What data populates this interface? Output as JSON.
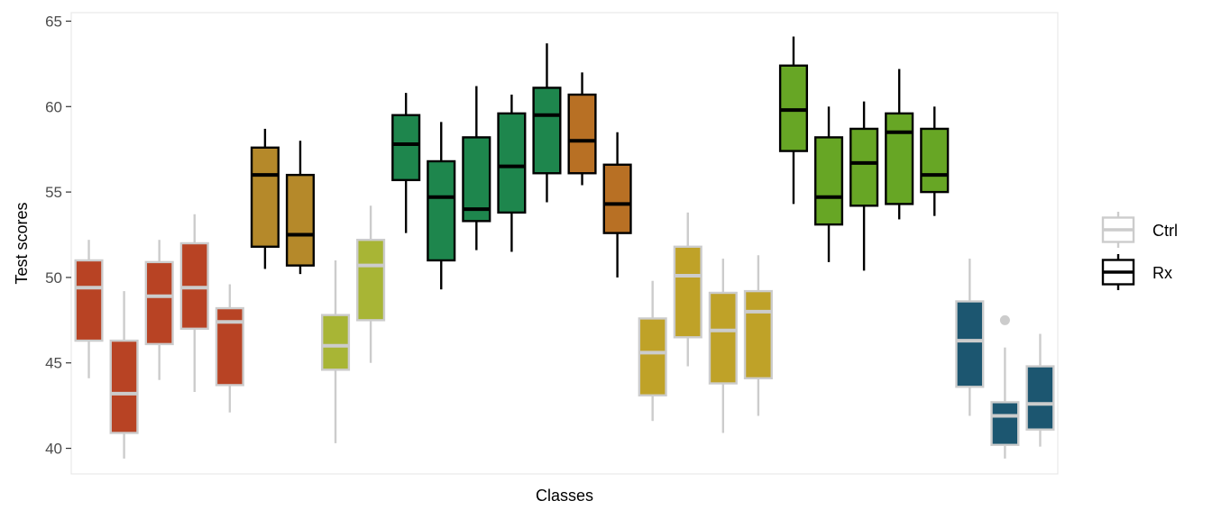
{
  "chart_data": {
    "type": "boxplot",
    "title": "",
    "xlabel": "Classes",
    "ylabel": "Test scores",
    "ylim": [
      38.5,
      65.5
    ],
    "yticks": [
      40,
      45,
      50,
      55,
      60,
      65
    ],
    "grid": false,
    "legend_position": "right",
    "legend": [
      {
        "name": "Ctrl",
        "line_color": "#cccccc"
      },
      {
        "name": "Rx",
        "line_color": "#000000"
      }
    ],
    "boxes": [
      {
        "group": "Ctrl",
        "fill": "#b84324",
        "lower_whisker": 44.1,
        "q1": 46.3,
        "median": 49.4,
        "q3": 51.0,
        "upper_whisker": 52.2,
        "outliers": []
      },
      {
        "group": "Ctrl",
        "fill": "#b84324",
        "lower_whisker": 39.4,
        "q1": 40.9,
        "median": 43.2,
        "q3": 46.3,
        "upper_whisker": 49.2,
        "outliers": []
      },
      {
        "group": "Ctrl",
        "fill": "#b84324",
        "lower_whisker": 44.0,
        "q1": 46.1,
        "median": 48.9,
        "q3": 50.9,
        "upper_whisker": 52.2,
        "outliers": []
      },
      {
        "group": "Ctrl",
        "fill": "#b84324",
        "lower_whisker": 43.3,
        "q1": 47.0,
        "median": 49.4,
        "q3": 52.0,
        "upper_whisker": 53.7,
        "outliers": []
      },
      {
        "group": "Ctrl",
        "fill": "#b84324",
        "lower_whisker": 42.1,
        "q1": 43.7,
        "median": 47.4,
        "q3": 48.2,
        "upper_whisker": 49.6,
        "outliers": []
      },
      {
        "group": "Rx",
        "fill": "#b5892a",
        "lower_whisker": 50.5,
        "q1": 51.8,
        "median": 56.0,
        "q3": 57.6,
        "upper_whisker": 58.7,
        "outliers": []
      },
      {
        "group": "Rx",
        "fill": "#b5892a",
        "lower_whisker": 50.2,
        "q1": 50.7,
        "median": 52.5,
        "q3": 56.0,
        "upper_whisker": 58.0,
        "outliers": []
      },
      {
        "group": "Ctrl",
        "fill": "#a8b535",
        "lower_whisker": 40.3,
        "q1": 44.6,
        "median": 46.0,
        "q3": 47.8,
        "upper_whisker": 51.0,
        "outliers": []
      },
      {
        "group": "Ctrl",
        "fill": "#a8b535",
        "lower_whisker": 45.0,
        "q1": 47.5,
        "median": 50.7,
        "q3": 52.2,
        "upper_whisker": 54.2,
        "outliers": []
      },
      {
        "group": "Rx",
        "fill": "#1e864d",
        "lower_whisker": 52.6,
        "q1": 55.7,
        "median": 57.8,
        "q3": 59.5,
        "upper_whisker": 60.8,
        "outliers": []
      },
      {
        "group": "Rx",
        "fill": "#1e864d",
        "lower_whisker": 49.3,
        "q1": 51.0,
        "median": 54.7,
        "q3": 56.8,
        "upper_whisker": 59.1,
        "outliers": []
      },
      {
        "group": "Rx",
        "fill": "#1e864d",
        "lower_whisker": 51.6,
        "q1": 53.3,
        "median": 54.0,
        "q3": 58.2,
        "upper_whisker": 61.2,
        "outliers": []
      },
      {
        "group": "Rx",
        "fill": "#1e864d",
        "lower_whisker": 51.5,
        "q1": 53.8,
        "median": 56.5,
        "q3": 59.6,
        "upper_whisker": 60.7,
        "outliers": []
      },
      {
        "group": "Rx",
        "fill": "#1e864d",
        "lower_whisker": 54.4,
        "q1": 56.1,
        "median": 59.5,
        "q3": 61.1,
        "upper_whisker": 63.7,
        "outliers": []
      },
      {
        "group": "Rx",
        "fill": "#b87024",
        "lower_whisker": 55.4,
        "q1": 56.1,
        "median": 58.0,
        "q3": 60.7,
        "upper_whisker": 62.0,
        "outliers": []
      },
      {
        "group": "Rx",
        "fill": "#b87024",
        "lower_whisker": 50.0,
        "q1": 52.6,
        "median": 54.3,
        "q3": 56.6,
        "upper_whisker": 58.5,
        "outliers": []
      },
      {
        "group": "Ctrl",
        "fill": "#bfa228",
        "lower_whisker": 41.6,
        "q1": 43.1,
        "median": 45.6,
        "q3": 47.6,
        "upper_whisker": 49.8,
        "outliers": []
      },
      {
        "group": "Ctrl",
        "fill": "#bfa228",
        "lower_whisker": 44.8,
        "q1": 46.5,
        "median": 50.1,
        "q3": 51.8,
        "upper_whisker": 53.8,
        "outliers": []
      },
      {
        "group": "Ctrl",
        "fill": "#bfa228",
        "lower_whisker": 40.9,
        "q1": 43.8,
        "median": 46.9,
        "q3": 49.1,
        "upper_whisker": 51.1,
        "outliers": []
      },
      {
        "group": "Ctrl",
        "fill": "#bfa228",
        "lower_whisker": 41.9,
        "q1": 44.1,
        "median": 48.0,
        "q3": 49.2,
        "upper_whisker": 51.3,
        "outliers": []
      },
      {
        "group": "Rx",
        "fill": "#67a625",
        "lower_whisker": 54.3,
        "q1": 57.4,
        "median": 59.8,
        "q3": 62.4,
        "upper_whisker": 64.1,
        "outliers": []
      },
      {
        "group": "Rx",
        "fill": "#67a625",
        "lower_whisker": 50.9,
        "q1": 53.1,
        "median": 54.7,
        "q3": 58.2,
        "upper_whisker": 60.0,
        "outliers": []
      },
      {
        "group": "Rx",
        "fill": "#67a625",
        "lower_whisker": 50.4,
        "q1": 54.2,
        "median": 56.7,
        "q3": 58.7,
        "upper_whisker": 60.3,
        "outliers": []
      },
      {
        "group": "Rx",
        "fill": "#67a625",
        "lower_whisker": 53.4,
        "q1": 54.3,
        "median": 58.5,
        "q3": 59.6,
        "upper_whisker": 62.2,
        "outliers": []
      },
      {
        "group": "Rx",
        "fill": "#67a625",
        "lower_whisker": 53.6,
        "q1": 55.0,
        "median": 56.0,
        "q3": 58.7,
        "upper_whisker": 60.0,
        "outliers": []
      },
      {
        "group": "Ctrl",
        "fill": "#1c5670",
        "lower_whisker": 41.9,
        "q1": 43.6,
        "median": 46.3,
        "q3": 48.6,
        "upper_whisker": 51.1,
        "outliers": []
      },
      {
        "group": "Ctrl",
        "fill": "#1c5670",
        "lower_whisker": 39.4,
        "q1": 40.2,
        "median": 41.9,
        "q3": 42.7,
        "upper_whisker": 45.9,
        "outliers": [
          47.5
        ]
      },
      {
        "group": "Ctrl",
        "fill": "#1c5670",
        "lower_whisker": 40.1,
        "q1": 41.1,
        "median": 42.6,
        "q3": 44.8,
        "upper_whisker": 46.7,
        "outliers": []
      }
    ]
  }
}
